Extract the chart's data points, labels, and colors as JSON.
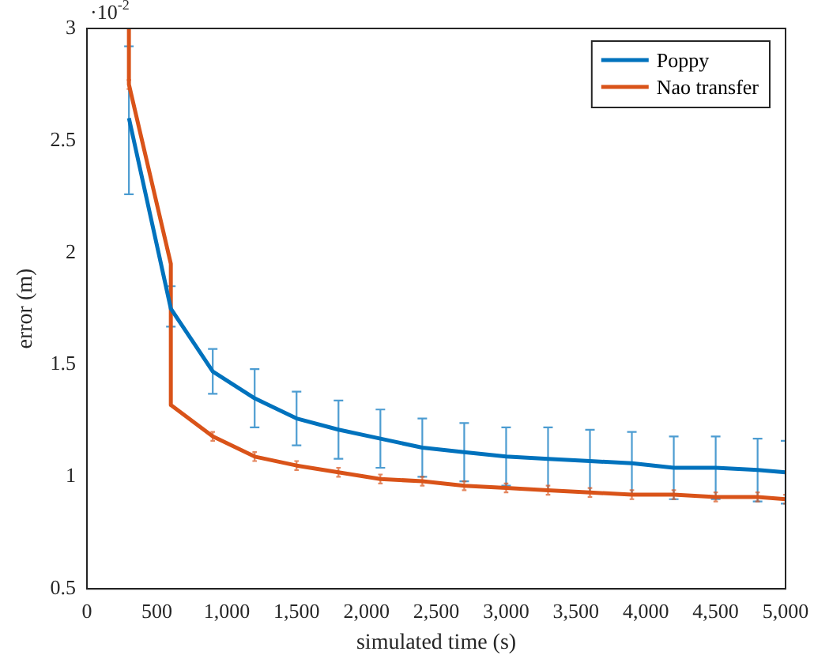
{
  "chart_data": {
    "type": "line",
    "xlabel": "simulated time (s)",
    "ylabel": "error (m)",
    "annotations": [
      "·10$^{-2}$"
    ],
    "xlim": [
      0,
      5000
    ],
    "xticks": [
      0,
      {
        "value": 500,
        "label": "500"
      },
      {
        "value": 1000,
        "label": "1,000"
      },
      {
        "value": 1500,
        "label": "1,500"
      },
      {
        "value": 2000,
        "label": "2,000"
      },
      {
        "value": 2500,
        "label": "2,500"
      },
      {
        "value": 3000,
        "label": "3,000"
      },
      {
        "value": 3500,
        "label": "3,500"
      },
      {
        "value": 4000,
        "label": "4,000"
      },
      {
        "value": 4500,
        "label": "4,500"
      },
      {
        "value": 5000,
        "label": "5,000"
      }
    ],
    "ylim": [
      0.5,
      3
    ],
    "yticks": [
      0.5,
      1,
      1.5,
      2,
      2.5,
      3
    ],
    "grid": false,
    "legend": "top right",
    "marker": "none",
    "line_style": "solid",
    "series": [
      {
        "name": "Poppy",
        "color": "#0072bd",
        "x": [
          300,
          600,
          900,
          1200,
          1500,
          1800,
          2100,
          2400,
          2700,
          3000,
          3300,
          3600,
          3900,
          4200,
          4500,
          4800,
          5000
        ],
        "values": [
          2.6,
          1.75,
          1.47,
          1.35,
          1.26,
          1.21,
          1.17,
          1.13,
          1.11,
          1.09,
          1.08,
          1.07,
          1.06,
          1.04,
          1.04,
          1.03,
          1.02
        ],
        "errors": [
          [
            2.26,
            2.92
          ],
          [
            1.67,
            1.85
          ],
          0.1,
          0.13,
          0.12,
          0.13,
          0.13,
          0.13,
          0.13,
          0.13,
          0.14,
          0.14,
          0.14,
          0.14,
          0.14,
          0.14,
          0.14
        ]
      },
      {
        "name": "Nao transfer",
        "color": "#d95319",
        "x": [
          300,
          300,
          600,
          600,
          900,
          1200,
          1500,
          1800,
          2100,
          2400,
          2700,
          3000,
          3300,
          3600,
          3900,
          4200,
          4500,
          4800,
          5000
        ],
        "values": [
          3,
          2.75,
          1.95,
          1.32,
          1.18,
          1.09,
          1.05,
          1.02,
          0.99,
          0.98,
          0.96,
          0.95,
          0.94,
          0.93,
          0.92,
          0.92,
          0.91,
          0.91,
          0.9
        ],
        "errors": [
          null,
          0.02,
          null,
          null,
          0.02,
          0.02,
          0.02,
          0.02,
          0.02,
          0.02,
          0.02,
          0.02,
          0.02,
          0.02,
          0.02,
          0.02,
          0.02,
          0.02,
          0.02
        ]
      }
    ]
  }
}
